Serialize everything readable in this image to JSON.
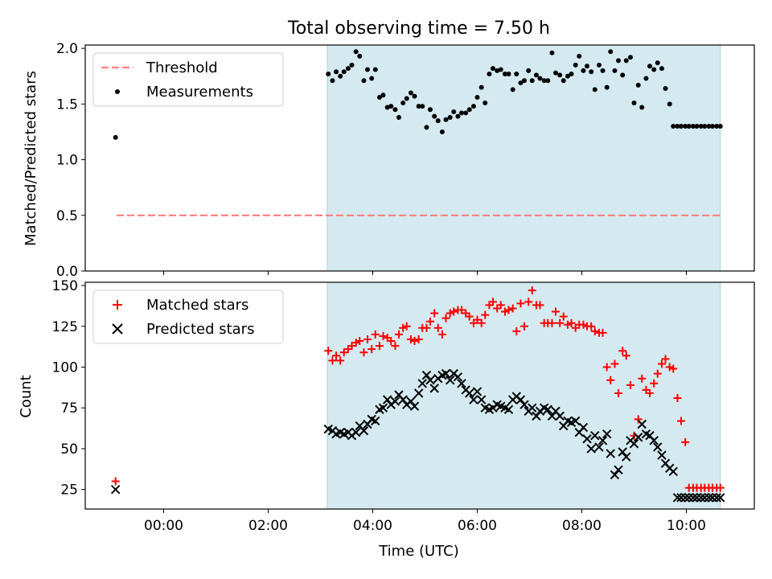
{
  "figure_title": "Total observing time = 7.50 h",
  "chart_data": [
    {
      "type": "scatter",
      "panel": "top",
      "ylabel": "Matched/Predicted stars",
      "xlabel": "",
      "xlim": [
        -1.5,
        11.3
      ],
      "ylim": [
        0,
        2.03
      ],
      "yticks": [
        0.0,
        0.5,
        1.0,
        1.5,
        2.0
      ],
      "ytick_labels": [
        "0.0",
        "0.5",
        "1.0",
        "1.5",
        "2.0"
      ],
      "xticks": [
        0,
        2,
        4,
        6,
        8,
        10
      ],
      "shaded_span": [
        3.13,
        10.65
      ],
      "shade_color": "#d4eaf0",
      "legend_position": "top-left",
      "series": [
        {
          "name": "Threshold",
          "kind": "dashed-line",
          "color": "#ff7f7f",
          "x": [
            -0.9,
            10.65
          ],
          "y": [
            0.5,
            0.5
          ]
        },
        {
          "name": "Measurements",
          "kind": "dot",
          "color": "#000000",
          "x": [
            -0.92,
            3.15,
            3.23,
            3.3,
            3.38,
            3.45,
            3.53,
            3.6,
            3.68,
            3.75,
            3.83,
            3.9,
            3.98,
            4.05,
            4.13,
            4.2,
            4.28,
            4.35,
            4.43,
            4.5,
            4.58,
            4.65,
            4.73,
            4.8,
            4.88,
            4.95,
            5.03,
            5.1,
            5.18,
            5.25,
            5.33,
            5.4,
            5.48,
            5.55,
            5.63,
            5.7,
            5.78,
            5.85,
            5.93,
            6.0,
            6.08,
            6.15,
            6.23,
            6.3,
            6.38,
            6.45,
            6.53,
            6.6,
            6.68,
            6.75,
            6.83,
            6.9,
            6.98,
            7.05,
            7.13,
            7.2,
            7.28,
            7.35,
            7.43,
            7.5,
            7.58,
            7.65,
            7.73,
            7.8,
            7.88,
            7.95,
            8.03,
            8.1,
            8.18,
            8.25,
            8.33,
            8.4,
            8.48,
            8.55,
            8.63,
            8.7,
            8.78,
            8.85,
            8.93,
            9.0,
            9.08,
            9.15,
            9.23,
            9.3,
            9.38,
            9.45,
            9.53,
            9.6,
            9.68,
            9.75,
            9.83,
            9.9,
            9.98,
            10.05,
            10.13,
            10.2,
            10.28,
            10.35,
            10.43,
            10.5,
            10.58,
            10.65
          ],
          "y": [
            1.2,
            1.77,
            1.71,
            1.79,
            1.75,
            1.79,
            1.82,
            1.85,
            1.97,
            1.93,
            1.71,
            1.81,
            1.73,
            1.81,
            1.56,
            1.58,
            1.47,
            1.48,
            1.45,
            1.38,
            1.51,
            1.55,
            1.6,
            1.57,
            1.48,
            1.48,
            1.29,
            1.45,
            1.39,
            1.35,
            1.25,
            1.36,
            1.38,
            1.43,
            1.39,
            1.42,
            1.42,
            1.45,
            1.48,
            1.56,
            1.65,
            1.51,
            1.77,
            1.82,
            1.8,
            1.81,
            1.77,
            1.77,
            1.63,
            1.77,
            1.69,
            1.71,
            1.8,
            1.71,
            1.76,
            1.73,
            1.71,
            1.71,
            1.96,
            1.78,
            1.76,
            1.71,
            1.75,
            1.77,
            1.85,
            1.93,
            1.8,
            1.84,
            1.79,
            1.63,
            1.85,
            1.8,
            1.65,
            1.97,
            1.8,
            1.89,
            1.76,
            1.89,
            1.92,
            1.51,
            1.67,
            1.47,
            1.73,
            1.84,
            1.81,
            1.87,
            1.82,
            1.64,
            1.5,
            1.3,
            1.3,
            1.3,
            1.3,
            1.3,
            1.3,
            1.3,
            1.3,
            1.3,
            1.3,
            1.3,
            1.3,
            1.3
          ]
        }
      ]
    },
    {
      "type": "scatter",
      "panel": "bottom",
      "ylabel": "Count",
      "xlabel": "Time (UTC)",
      "xlim": [
        -1.5,
        11.3
      ],
      "ylim": [
        13,
        152
      ],
      "yticks": [
        25,
        50,
        75,
        100,
        125,
        150
      ],
      "ytick_labels": [
        "25",
        "50",
        "75",
        "100",
        "125",
        "150"
      ],
      "xticks": [
        0,
        2,
        4,
        6,
        8,
        10
      ],
      "xtick_labels": [
        "00:00",
        "02:00",
        "04:00",
        "06:00",
        "08:00",
        "10:00"
      ],
      "shaded_span": [
        3.13,
        10.65
      ],
      "shade_color": "#d4eaf0",
      "legend_position": "top-left",
      "series": [
        {
          "name": "Matched stars",
          "kind": "plus",
          "color": "#ff0000",
          "x": [
            -0.92,
            3.15,
            3.23,
            3.3,
            3.38,
            3.45,
            3.53,
            3.6,
            3.68,
            3.75,
            3.83,
            3.9,
            3.98,
            4.05,
            4.13,
            4.2,
            4.28,
            4.35,
            4.43,
            4.5,
            4.58,
            4.65,
            4.73,
            4.8,
            4.88,
            4.95,
            5.03,
            5.1,
            5.18,
            5.25,
            5.33,
            5.4,
            5.48,
            5.55,
            5.63,
            5.7,
            5.78,
            5.85,
            5.93,
            6.0,
            6.08,
            6.15,
            6.23,
            6.3,
            6.38,
            6.45,
            6.53,
            6.6,
            6.68,
            6.75,
            6.83,
            6.9,
            6.98,
            7.05,
            7.13,
            7.2,
            7.28,
            7.35,
            7.43,
            7.5,
            7.58,
            7.65,
            7.73,
            7.8,
            7.88,
            7.95,
            8.03,
            8.1,
            8.18,
            8.25,
            8.33,
            8.4,
            8.48,
            8.55,
            8.63,
            8.7,
            8.78,
            8.85,
            8.93,
            9.0,
            9.08,
            9.15,
            9.23,
            9.3,
            9.38,
            9.45,
            9.53,
            9.6,
            9.68,
            9.75,
            9.83,
            9.9,
            9.98,
            10.05,
            10.13,
            10.2,
            10.28,
            10.35,
            10.43,
            10.5,
            10.58,
            10.65
          ],
          "y": [
            30,
            110,
            104,
            107,
            104,
            109,
            111,
            113,
            115,
            116,
            109,
            117,
            111,
            120,
            113,
            119,
            118,
            116,
            113,
            120,
            124,
            125,
            117,
            116,
            117,
            124,
            124,
            128,
            133,
            124,
            120,
            130,
            133,
            134,
            135,
            135,
            133,
            131,
            127,
            129,
            127,
            132,
            138,
            140,
            136,
            138,
            134,
            135,
            136,
            122,
            139,
            125,
            140,
            147,
            138,
            138,
            127,
            127,
            127,
            134,
            127,
            131,
            126,
            127,
            124,
            126,
            126,
            125,
            125,
            122,
            121,
            121,
            100,
            92,
            102,
            84,
            110,
            107,
            89,
            58,
            68,
            93,
            86,
            84,
            90,
            96,
            102,
            105,
            100,
            99,
            81,
            67,
            54,
            26,
            26,
            26,
            26,
            26,
            26,
            26,
            26,
            26
          ]
        },
        {
          "name": "Predicted stars",
          "kind": "x",
          "color": "#000000",
          "x": [
            -0.92,
            3.15,
            3.23,
            3.3,
            3.38,
            3.45,
            3.53,
            3.6,
            3.68,
            3.75,
            3.83,
            3.9,
            3.98,
            4.05,
            4.13,
            4.2,
            4.28,
            4.35,
            4.43,
            4.5,
            4.58,
            4.65,
            4.73,
            4.8,
            4.88,
            4.95,
            5.03,
            5.1,
            5.18,
            5.25,
            5.33,
            5.4,
            5.48,
            5.55,
            5.63,
            5.7,
            5.78,
            5.85,
            5.93,
            6.0,
            6.08,
            6.15,
            6.23,
            6.3,
            6.38,
            6.45,
            6.53,
            6.6,
            6.68,
            6.75,
            6.83,
            6.9,
            6.98,
            7.05,
            7.13,
            7.2,
            7.28,
            7.35,
            7.43,
            7.5,
            7.58,
            7.65,
            7.73,
            7.8,
            7.88,
            7.95,
            8.03,
            8.1,
            8.18,
            8.25,
            8.33,
            8.4,
            8.48,
            8.55,
            8.63,
            8.7,
            8.78,
            8.85,
            8.93,
            9.0,
            9.08,
            9.15,
            9.23,
            9.3,
            9.38,
            9.45,
            9.53,
            9.6,
            9.68,
            9.75,
            9.83,
            9.9,
            9.98,
            10.05,
            10.13,
            10.2,
            10.28,
            10.35,
            10.43,
            10.5,
            10.58,
            10.65
          ],
          "y": [
            25,
            62,
            61,
            59,
            60,
            59,
            60,
            58,
            60,
            64,
            61,
            65,
            68,
            67,
            74,
            75,
            80,
            77,
            79,
            83,
            80,
            77,
            79,
            76,
            84,
            90,
            95,
            92,
            87,
            93,
            95,
            96,
            92,
            96,
            94,
            90,
            86,
            84,
            80,
            85,
            80,
            75,
            74,
            75,
            77,
            76,
            75,
            74,
            80,
            82,
            80,
            77,
            73,
            75,
            70,
            73,
            75,
            74,
            70,
            73,
            70,
            64,
            67,
            66,
            67,
            60,
            63,
            56,
            50,
            58,
            51,
            55,
            59,
            47,
            34,
            37,
            48,
            45,
            55,
            53,
            57,
            65,
            59,
            58,
            55,
            51,
            46,
            41,
            38,
            36,
            20,
            20,
            20,
            20,
            20,
            20,
            20,
            20,
            20,
            20,
            20,
            20
          ]
        }
      ]
    }
  ]
}
